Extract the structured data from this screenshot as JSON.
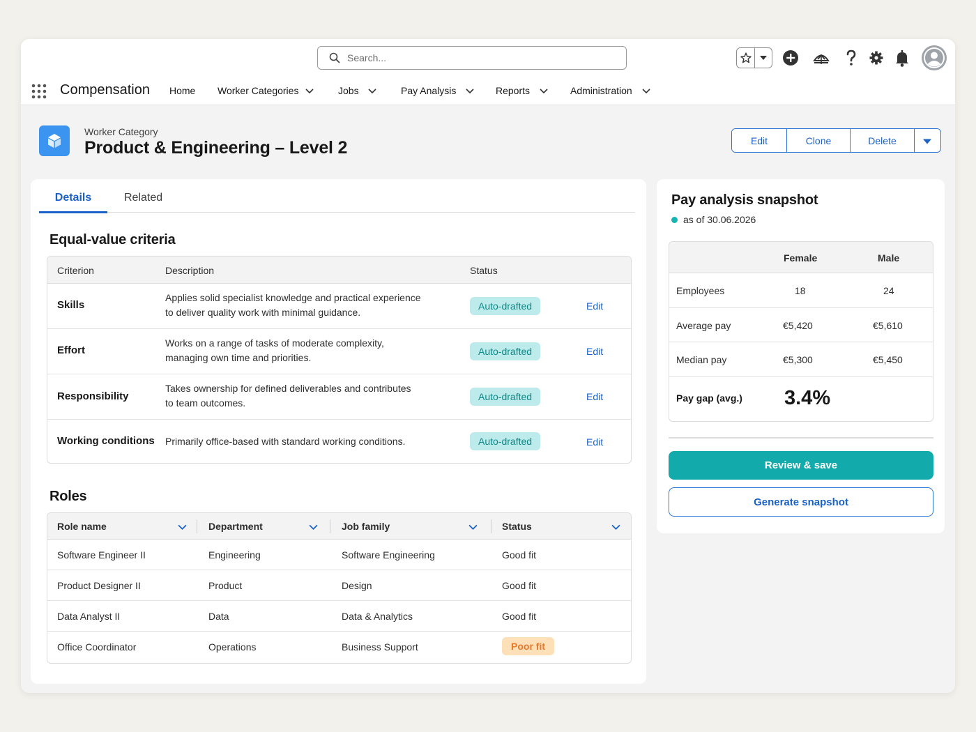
{
  "search": {
    "placeholder": "Search..."
  },
  "nav": {
    "app_name": "Compensation",
    "items": [
      {
        "label": "Home"
      },
      {
        "label": "Worker Categories"
      },
      {
        "label": "Jobs"
      },
      {
        "label": "Pay Analysis"
      },
      {
        "label": "Reports"
      },
      {
        "label": "Administration"
      }
    ]
  },
  "record": {
    "type_label": "Worker Category",
    "title": "Product & Engineering – Level 2",
    "actions": {
      "edit": "Edit",
      "clone": "Clone",
      "delete": "Delete"
    }
  },
  "tabs": {
    "details": "Details",
    "related": "Related"
  },
  "criteria": {
    "title": "Equal-value criteria",
    "headers": {
      "criterion": "Criterion",
      "description": "Description",
      "status": "Status"
    },
    "rows": [
      {
        "name": "Skills",
        "desc1": "Applies solid specialist knowledge and practical experience",
        "desc2": "to deliver quality work with minimal guidance.",
        "status": "Auto-drafted",
        "action": "Edit"
      },
      {
        "name": "Effort",
        "desc1": "Works on a range of tasks of moderate complexity,",
        "desc2": "managing own time and priorities.",
        "status": "Auto-drafted",
        "action": "Edit"
      },
      {
        "name": "Responsibility",
        "desc1": "Takes ownership for defined deliverables and contributes",
        "desc2": "to team outcomes.",
        "status": "Auto-drafted",
        "action": "Edit"
      },
      {
        "name": "Working conditions",
        "desc1": "Primarily office-based with standard working conditions.",
        "desc2": "",
        "status": "Auto-drafted",
        "action": "Edit"
      }
    ]
  },
  "roles": {
    "title": "Roles",
    "headers": {
      "role": "Role name",
      "department": "Department",
      "family": "Job family",
      "status": "Status"
    },
    "rows": [
      {
        "role": "Software Engineer II",
        "department": "Engineering",
        "family": "Software Engineering",
        "status": "Good fit"
      },
      {
        "role": "Product Designer II",
        "department": "Product",
        "family": "Design",
        "status": "Good fit"
      },
      {
        "role": "Data Analyst II",
        "department": "Data",
        "family": "Data & Analytics",
        "status": "Good fit"
      },
      {
        "role": "Office Coordinator",
        "department": "Operations",
        "family": "Business Support",
        "status": "Poor fit"
      }
    ]
  },
  "snapshot": {
    "title": "Pay analysis snapshot",
    "as_of": "as of 30.06.2026",
    "headers": {
      "female": "Female",
      "male": "Male"
    },
    "rows": [
      {
        "label": "Employees",
        "female": "18",
        "male": "24"
      },
      {
        "label": "Average pay",
        "female": "€5,420",
        "male": "€5,610"
      },
      {
        "label": "Median pay",
        "female": "€5,300",
        "male": "€5,450"
      }
    ],
    "gap_label": "Pay gap (avg.)",
    "gap_value": "3.4%",
    "primary_button": "Review & save",
    "secondary_button": "Generate snapshot"
  },
  "colors": {
    "accent_blue": "#1a62c8",
    "teal": "#12aaab",
    "badge_auto_bg": "#bdeaea",
    "badge_poor_bg": "#fde0b8",
    "badge_poor_text": "#e8782a"
  },
  "icons": [
    "search-icon",
    "star-icon",
    "chevron-down-icon",
    "add-icon",
    "trailhead-icon",
    "help-icon",
    "gear-icon",
    "bell-icon",
    "avatar",
    "app-launcher-icon",
    "cube-icon"
  ]
}
